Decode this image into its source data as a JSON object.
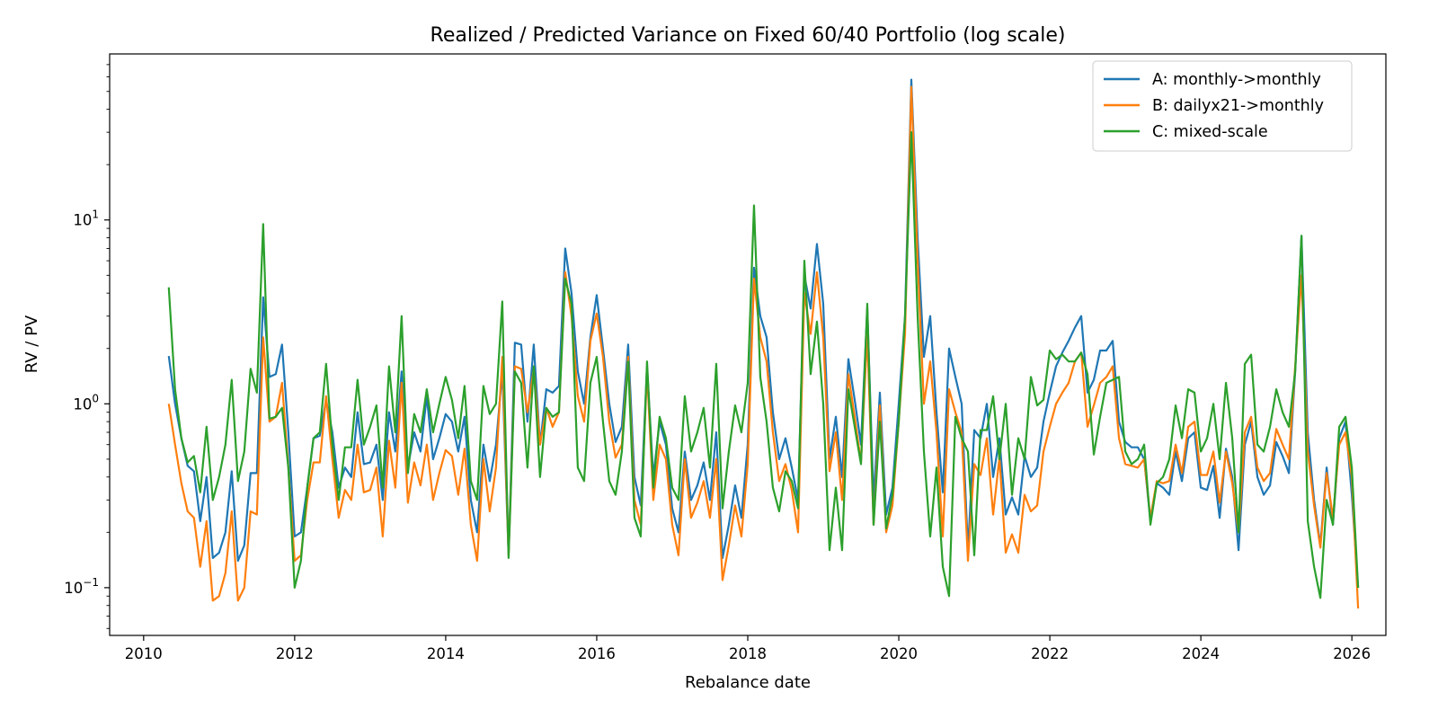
{
  "chart_data": {
    "type": "line",
    "title": "Realized / Predicted Variance on Fixed 60/40 Portfolio (log scale)",
    "xlabel": "Rebalance date",
    "ylabel": "RV / PV",
    "yscale": "log",
    "xlim": [
      2009.55,
      2026.45
    ],
    "ylim": [
      0.055,
      80
    ],
    "x_ticks": [
      2010,
      2012,
      2014,
      2016,
      2018,
      2020,
      2022,
      2024,
      2026
    ],
    "x_tick_labels": [
      "2010",
      "2012",
      "2014",
      "2016",
      "2018",
      "2020",
      "2022",
      "2024",
      "2026"
    ],
    "y_ticks": [
      0.1,
      1,
      10
    ],
    "y_tick_labels": [
      {
        "base": "10",
        "exp": "−1"
      },
      {
        "base": "10",
        "exp": "0"
      },
      {
        "base": "10",
        "exp": "1"
      }
    ],
    "x_start": 2010.333,
    "x_step": 0.08333,
    "legend_position": "top-right",
    "series": [
      {
        "name": "A: monthly->monthly",
        "color": "#1f77b4",
        "values": [
          1.82,
          1.0,
          0.65,
          0.46,
          0.43,
          0.23,
          0.4,
          0.145,
          0.155,
          0.2,
          0.43,
          0.14,
          0.17,
          0.42,
          0.42,
          3.8,
          1.4,
          1.45,
          2.1,
          0.7,
          0.19,
          0.2,
          0.35,
          0.65,
          0.67,
          1.05,
          0.7,
          0.35,
          0.45,
          0.4,
          0.9,
          0.47,
          0.48,
          0.6,
          0.3,
          0.9,
          0.55,
          1.5,
          0.45,
          0.7,
          0.55,
          1.1,
          0.5,
          0.65,
          0.88,
          0.8,
          0.55,
          0.85,
          0.3,
          0.2,
          0.6,
          0.38,
          0.6,
          1.5,
          0.15,
          2.15,
          2.1,
          0.8,
          2.1,
          0.6,
          1.2,
          1.15,
          1.25,
          7.0,
          4.0,
          1.5,
          1.0,
          2.3,
          3.9,
          2.0,
          1.0,
          0.62,
          0.75,
          2.1,
          0.4,
          0.28,
          1.6,
          0.4,
          0.8,
          0.6,
          0.27,
          0.2,
          0.55,
          0.3,
          0.36,
          0.48,
          0.3,
          0.7,
          0.145,
          0.22,
          0.36,
          0.24,
          0.6,
          5.5,
          3.0,
          2.3,
          0.9,
          0.5,
          0.65,
          0.45,
          0.3,
          5.0,
          3.3,
          7.4,
          3.5,
          0.5,
          0.85,
          0.4,
          1.75,
          1.05,
          0.6,
          3.3,
          0.3,
          1.15,
          0.25,
          0.35,
          1.0,
          3.0,
          58.0,
          8.0,
          1.8,
          3.0,
          0.9,
          0.33,
          2.0,
          1.4,
          1.0,
          0.16,
          0.72,
          0.65,
          1.0,
          0.4,
          0.65,
          0.25,
          0.31,
          0.25,
          0.52,
          0.4,
          0.45,
          0.8,
          1.15,
          1.6,
          1.9,
          2.2,
          2.6,
          3.0,
          1.15,
          1.35,
          1.95,
          1.95,
          2.2,
          0.8,
          0.62,
          0.58,
          0.58,
          0.5,
          0.23,
          0.37,
          0.35,
          0.32,
          0.55,
          0.38,
          0.65,
          0.7,
          0.35,
          0.34,
          0.46,
          0.24,
          0.57,
          0.4,
          0.16,
          0.6,
          0.8,
          0.4,
          0.32,
          0.36,
          0.62,
          0.52,
          0.42,
          1.5,
          8.2,
          0.7,
          0.3,
          0.17,
          0.45,
          0.22,
          0.65,
          0.8,
          0.32,
          0.1
        ]
      },
      {
        "name": "B: dailyx21->monthly",
        "color": "#ff7f0e",
        "values": [
          1.0,
          0.6,
          0.37,
          0.26,
          0.24,
          0.13,
          0.23,
          0.085,
          0.09,
          0.12,
          0.26,
          0.085,
          0.1,
          0.26,
          0.25,
          2.3,
          0.8,
          0.85,
          1.3,
          0.45,
          0.14,
          0.15,
          0.3,
          0.48,
          0.48,
          1.1,
          0.5,
          0.24,
          0.34,
          0.3,
          0.6,
          0.33,
          0.34,
          0.45,
          0.19,
          0.63,
          0.35,
          1.3,
          0.29,
          0.48,
          0.36,
          0.6,
          0.3,
          0.42,
          0.56,
          0.52,
          0.32,
          0.57,
          0.22,
          0.14,
          0.5,
          0.26,
          0.45,
          1.8,
          0.15,
          1.6,
          1.55,
          0.9,
          1.55,
          0.6,
          0.95,
          0.75,
          0.9,
          5.2,
          3.0,
          1.1,
          0.8,
          2.2,
          3.1,
          1.8,
          0.8,
          0.51,
          0.6,
          1.8,
          0.3,
          0.22,
          1.5,
          0.3,
          0.6,
          0.5,
          0.22,
          0.15,
          0.5,
          0.24,
          0.29,
          0.38,
          0.24,
          0.5,
          0.11,
          0.17,
          0.28,
          0.19,
          0.47,
          4.8,
          2.3,
          1.7,
          0.7,
          0.38,
          0.47,
          0.34,
          0.2,
          4.0,
          2.4,
          5.2,
          2.3,
          0.43,
          0.7,
          0.3,
          1.45,
          0.85,
          0.48,
          2.4,
          0.22,
          0.98,
          0.2,
          0.28,
          0.8,
          2.4,
          53.0,
          6.0,
          1.0,
          1.7,
          0.7,
          0.19,
          1.2,
          0.9,
          0.7,
          0.14,
          0.47,
          0.41,
          0.65,
          0.25,
          0.51,
          0.155,
          0.195,
          0.155,
          0.32,
          0.26,
          0.28,
          0.55,
          0.75,
          1.0,
          1.15,
          1.3,
          1.7,
          1.9,
          0.75,
          0.98,
          1.3,
          1.4,
          1.6,
          0.65,
          0.47,
          0.46,
          0.45,
          0.5,
          0.24,
          0.38,
          0.37,
          0.38,
          0.6,
          0.42,
          0.75,
          0.8,
          0.41,
          0.41,
          0.55,
          0.29,
          0.55,
          0.37,
          0.2,
          0.7,
          0.85,
          0.45,
          0.38,
          0.42,
          0.73,
          0.6,
          0.5,
          1.6,
          5.0,
          0.55,
          0.28,
          0.165,
          0.42,
          0.24,
          0.6,
          0.7,
          0.4,
          0.077
        ]
      },
      {
        "name": "C: mixed-scale",
        "color": "#2ca02c",
        "values": [
          4.3,
          1.2,
          0.65,
          0.48,
          0.52,
          0.33,
          0.75,
          0.3,
          0.4,
          0.6,
          1.35,
          0.38,
          0.55,
          1.55,
          1.15,
          9.5,
          0.83,
          0.85,
          0.95,
          0.45,
          0.1,
          0.14,
          0.35,
          0.65,
          0.7,
          1.65,
          0.6,
          0.3,
          0.58,
          0.58,
          1.35,
          0.6,
          0.75,
          0.98,
          0.35,
          1.6,
          0.7,
          3.0,
          0.42,
          0.88,
          0.7,
          1.2,
          0.7,
          1.0,
          1.4,
          1.05,
          0.65,
          1.25,
          0.38,
          0.3,
          1.25,
          0.88,
          1.0,
          3.6,
          0.145,
          1.5,
          1.3,
          0.45,
          1.6,
          0.4,
          0.95,
          0.85,
          0.9,
          4.8,
          3.5,
          0.45,
          0.38,
          1.3,
          1.8,
          0.8,
          0.38,
          0.32,
          0.55,
          1.7,
          0.24,
          0.19,
          1.7,
          0.35,
          0.85,
          0.65,
          0.35,
          0.3,
          1.1,
          0.55,
          0.7,
          0.95,
          0.45,
          1.65,
          0.27,
          0.55,
          0.98,
          0.7,
          1.3,
          12.0,
          1.4,
          0.8,
          0.35,
          0.26,
          0.43,
          0.38,
          0.27,
          6.0,
          1.45,
          2.8,
          1.0,
          0.16,
          0.35,
          0.16,
          1.2,
          0.75,
          0.47,
          3.5,
          0.22,
          0.8,
          0.21,
          0.32,
          0.8,
          3.0,
          30.0,
          3.0,
          0.55,
          0.19,
          0.45,
          0.13,
          0.09,
          0.85,
          0.65,
          0.55,
          0.15,
          0.72,
          0.72,
          1.1,
          0.5,
          1.0,
          0.32,
          0.65,
          0.5,
          1.4,
          0.98,
          1.05,
          1.95,
          1.75,
          1.85,
          1.7,
          1.7,
          1.9,
          1.45,
          0.53,
          0.85,
          1.3,
          1.35,
          1.4,
          0.55,
          0.47,
          0.5,
          0.6,
          0.22,
          0.37,
          0.4,
          0.5,
          0.98,
          0.65,
          1.2,
          1.15,
          0.55,
          0.65,
          1.0,
          0.5,
          1.3,
          0.65,
          0.2,
          1.65,
          1.85,
          0.6,
          0.55,
          0.75,
          1.2,
          0.9,
          0.75,
          1.5,
          8.2,
          0.23,
          0.13,
          0.088,
          0.3,
          0.22,
          0.75,
          0.85,
          0.45,
          0.1
        ]
      }
    ]
  }
}
